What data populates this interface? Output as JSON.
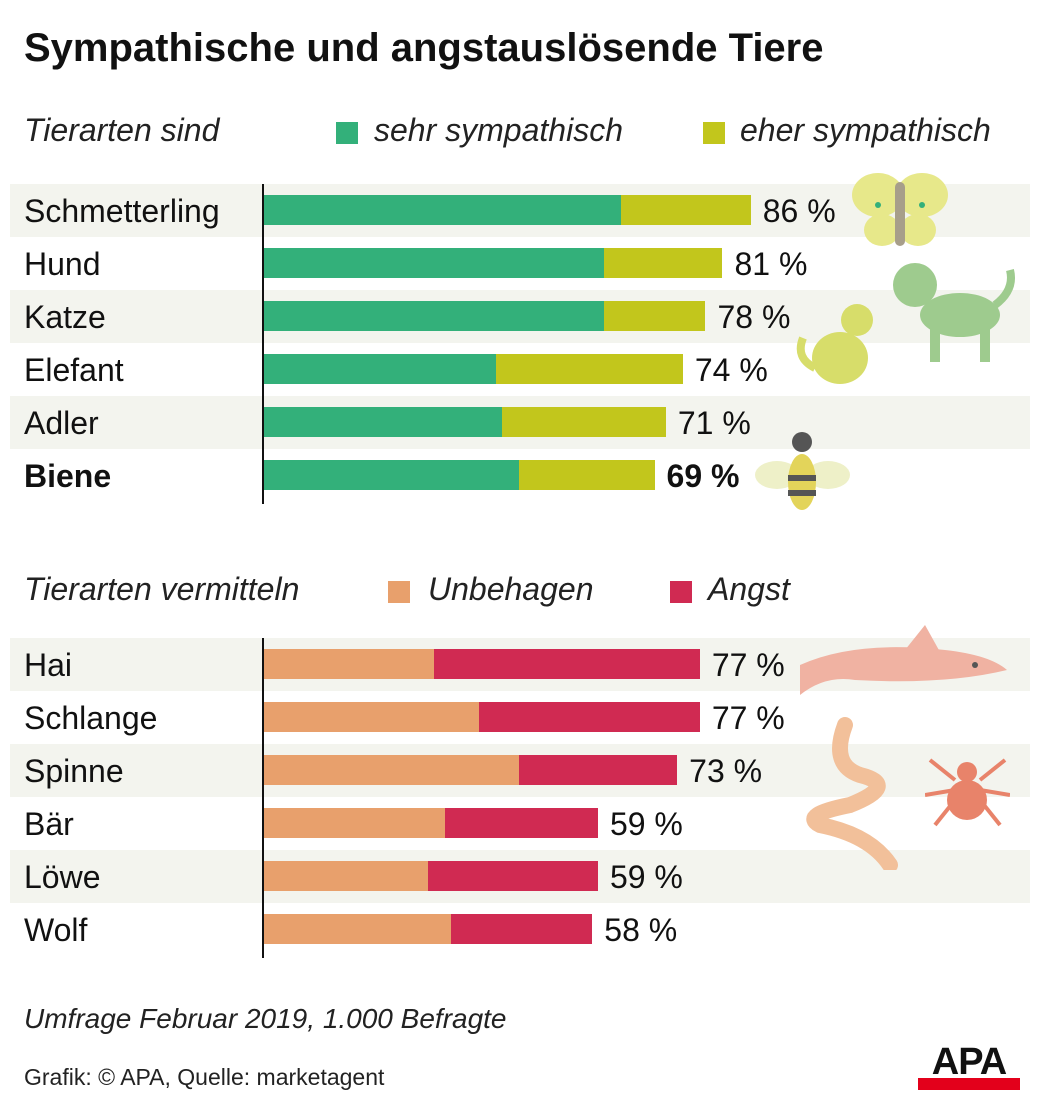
{
  "chart_data": [
    {
      "type": "bar",
      "stacked": true,
      "orientation": "horizontal",
      "title": "Sympathische und angstauslösende Tiere",
      "legend_title": "Tierarten sind",
      "categories": [
        "Schmetterling",
        "Hund",
        "Katze",
        "Elefant",
        "Adler",
        "Biene"
      ],
      "highlight": "Biene",
      "series": [
        {
          "name": "sehr sympathisch",
          "color": "#33b07a",
          "values": [
            63,
            60,
            60,
            41,
            42,
            45
          ]
        },
        {
          "name": "eher sympathisch",
          "color": "#c2c61c",
          "values": [
            23,
            21,
            18,
            33,
            29,
            24
          ]
        }
      ],
      "totals": [
        "86 %",
        "81 %",
        "78 %",
        "74 %",
        "71 %",
        "69 %"
      ],
      "unit": "%"
    },
    {
      "type": "bar",
      "stacked": true,
      "orientation": "horizontal",
      "legend_title": "Tierarten vermitteln",
      "categories": [
        "Hai",
        "Schlange",
        "Spinne",
        "Bär",
        "Löwe",
        "Wolf"
      ],
      "series": [
        {
          "name": "Unbehagen",
          "color": "#e8a06c",
          "values": [
            30,
            38,
            45,
            32,
            29,
            33
          ]
        },
        {
          "name": "Angst",
          "color": "#d02a52",
          "values": [
            47,
            39,
            28,
            27,
            30,
            25
          ]
        }
      ],
      "totals": [
        "77 %",
        "77 %",
        "73 %",
        "59 %",
        "59 %",
        "58 %"
      ],
      "unit": "%"
    }
  ],
  "footer": {
    "note": "Umfrage Februar 2019, 1.000 Befragte",
    "source": "Grafik: © APA, Quelle: marketagent",
    "logo": "APA"
  }
}
